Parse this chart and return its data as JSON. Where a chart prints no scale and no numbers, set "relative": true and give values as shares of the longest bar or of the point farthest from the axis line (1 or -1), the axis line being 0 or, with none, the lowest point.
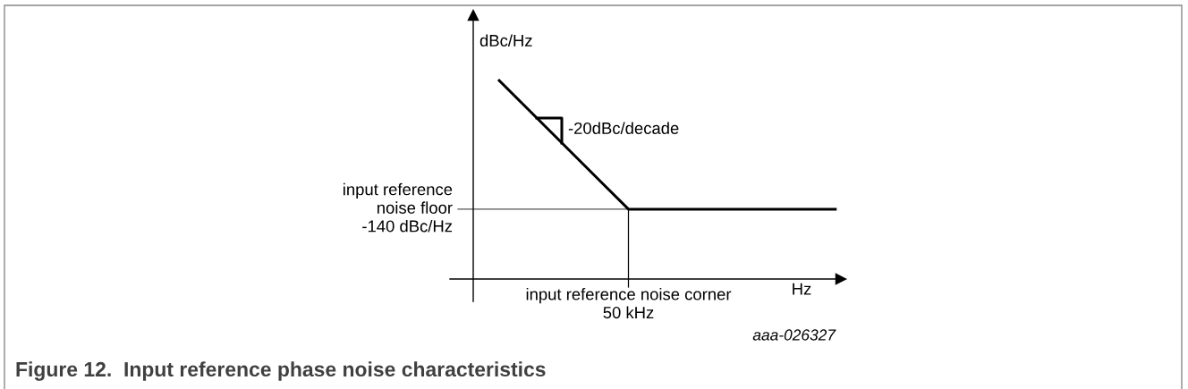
{
  "chart_data": {
    "type": "line",
    "relative": true,
    "title": "Figure 12.  Input reference phase noise characteristics",
    "xlabel": "Hz",
    "ylabel": "dBc/Hz",
    "categories": [
      null,
      null,
      null,
      null,
      null,
      null,
      null,
      null,
      null,
      null,
      null,
      null,
      null,
      null
    ],
    "series": [
      {
        "color": "#000000",
        "values": [
          1,
          0.87,
          0.74,
          0.61,
          0.48,
          0.35,
          0.35,
          0.35,
          0.35,
          0.35,
          0.35,
          0.35,
          0.35,
          0.35
        ]
      }
    ],
    "ref_lines": [
      {
        "axis": "y",
        "value": 0.35,
        "label": "input reference\nnoise floor\n-140 dBc/Hz",
        "color": "#555555"
      }
    ],
    "annotations": [
      "-20dBc/decade",
      "input reference noise corner\n50 kHz",
      "aaa-026327"
    ],
    "marker": "none",
    "line_style": "solid"
  }
}
